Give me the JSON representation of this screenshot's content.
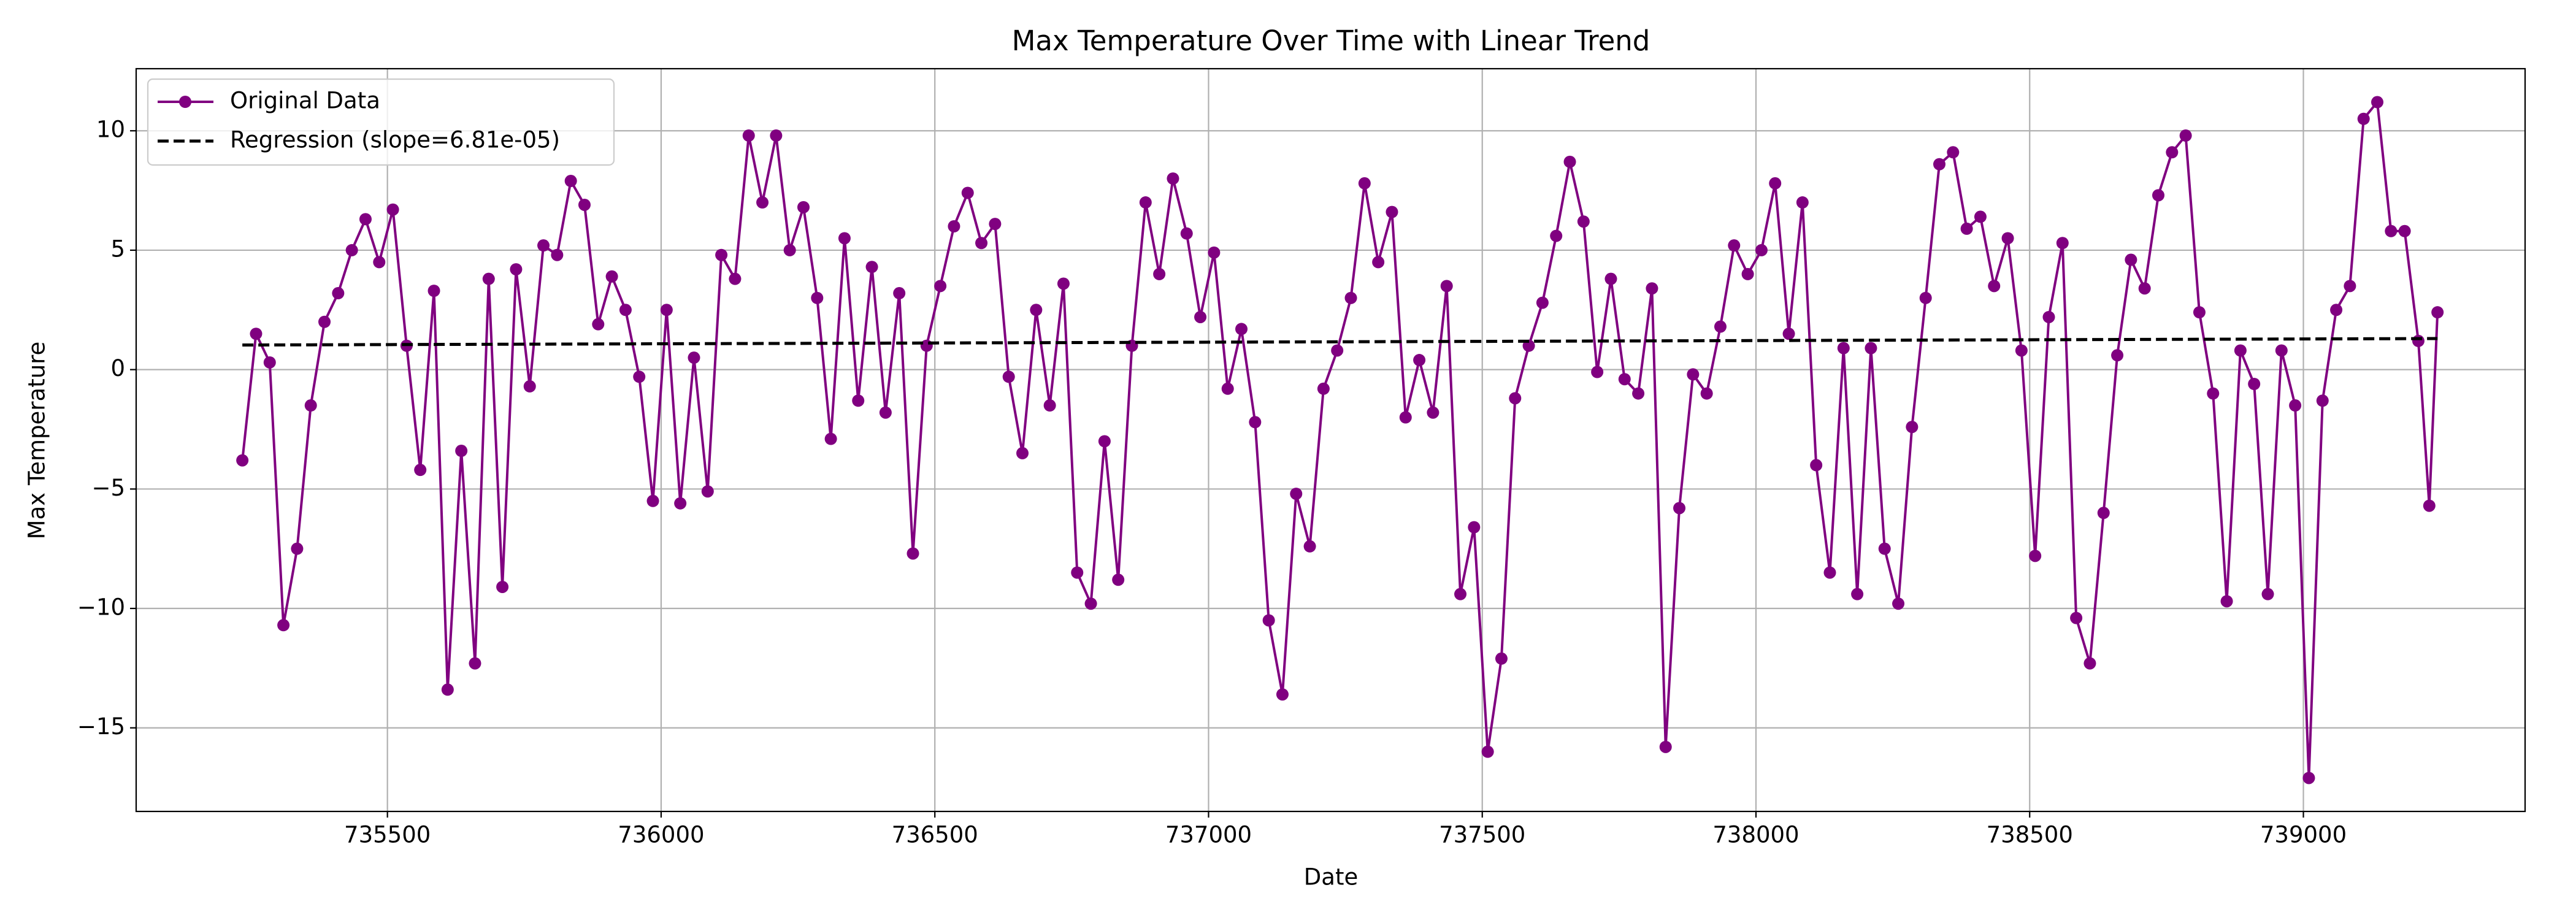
{
  "chart_data": {
    "type": "line",
    "title": "Max Temperature Over Time with Linear Trend",
    "x_label": "Date",
    "y_label": "Max Temperature",
    "xlim": [
      735041,
      739405
    ],
    "ylim": [
      -18.5,
      12.6
    ],
    "xticks": [
      735500,
      736000,
      736500,
      737000,
      737500,
      738000,
      738500,
      739000
    ],
    "yticks": [
      {
        "value": -15,
        "label": "−15"
      },
      {
        "value": -10,
        "label": "−10"
      },
      {
        "value": -5,
        "label": "−5"
      },
      0,
      5,
      10
    ],
    "grid": true,
    "legend": "upper left",
    "series": [
      {
        "name": "Original Data",
        "color": "#800080",
        "marker": "o",
        "x": [
          735235,
          735260,
          735285,
          735310,
          735335,
          735360,
          735385,
          735410,
          735435,
          735460,
          735485,
          735510,
          735535,
          735560,
          735585,
          735610,
          735635,
          735660,
          735685,
          735710,
          735735,
          735760,
          735785,
          735810,
          735835,
          735860,
          735885,
          735910,
          735935,
          735960,
          735985,
          736010,
          736035,
          736060,
          736085,
          736110,
          736135,
          736160,
          736185,
          736210,
          736235,
          736260,
          736285,
          736310,
          736335,
          736360,
          736385,
          736410,
          736435,
          736460,
          736485,
          736510,
          736535,
          736560,
          736585,
          736610,
          736635,
          736660,
          736685,
          736710,
          736735,
          736760,
          736785,
          736810,
          736835,
          736860,
          736885,
          736910,
          736935,
          736960,
          736985,
          737010,
          737035,
          737060,
          737085,
          737110,
          737135,
          737160,
          737185,
          737210,
          737235,
          737260,
          737285,
          737310,
          737335,
          737360,
          737385,
          737410,
          737435,
          737460,
          737485,
          737510,
          737535,
          737560,
          737585,
          737610,
          737635,
          737660,
          737685,
          737710,
          737735,
          737760,
          737785,
          737810,
          737835,
          737860,
          737885,
          737910,
          737935,
          737960,
          737985,
          738010,
          738035,
          738060,
          738085,
          738110,
          738135,
          738160,
          738185,
          738210,
          738235,
          738260,
          738285,
          738310,
          738335,
          738360,
          738385,
          738410,
          738435,
          738460,
          738485,
          738510,
          738535,
          738560,
          738585,
          738610,
          738635,
          738660,
          738685,
          738710,
          738735,
          738760,
          738785,
          738810,
          738835,
          738860,
          738885,
          738910,
          738935,
          738960,
          738985,
          739010,
          739035,
          739060,
          739085,
          739110,
          739135,
          739160,
          739185,
          739210,
          739230,
          739245
        ],
        "values": [
          -3.8,
          1.5,
          0.3,
          -10.7,
          -7.5,
          -1.5,
          2.0,
          3.2,
          5.0,
          6.3,
          4.5,
          6.7,
          1.0,
          -4.2,
          3.3,
          -13.4,
          -3.4,
          -12.3,
          3.8,
          -9.1,
          4.2,
          -0.7,
          5.2,
          4.8,
          7.9,
          6.9,
          1.9,
          3.9,
          2.5,
          -0.3,
          -5.5,
          2.5,
          -5.6,
          0.5,
          -5.1,
          4.8,
          3.8,
          9.8,
          7.0,
          9.8,
          5.0,
          6.8,
          3.0,
          -2.9,
          5.5,
          -1.3,
          4.3,
          -1.8,
          3.2,
          -7.7,
          1.0,
          3.5,
          6.0,
          7.4,
          5.3,
          6.1,
          -0.3,
          -3.5,
          2.5,
          -1.5,
          3.6,
          -8.5,
          -9.8,
          -3.0,
          -8.8,
          1.0,
          7.0,
          4.0,
          8.0,
          5.7,
          2.2,
          4.9,
          -0.8,
          1.7,
          -2.2,
          -10.5,
          -13.6,
          -5.2,
          -7.4,
          -0.8,
          0.8,
          3.0,
          7.8,
          4.5,
          6.6,
          -2.0,
          0.4,
          -1.8,
          3.5,
          -9.4,
          -6.6,
          -16.0,
          -12.1,
          -1.2,
          1.0,
          2.8,
          5.6,
          8.7,
          6.2,
          -0.1,
          3.8,
          -0.4,
          -1.0,
          3.4,
          -15.8,
          -5.8,
          -0.2,
          -1.0,
          1.8,
          5.2,
          4.0,
          5.0,
          7.8,
          1.5,
          7.0,
          -4.0,
          -8.5,
          0.9,
          -9.4,
          0.9,
          -7.5,
          -9.8,
          -2.4,
          3.0,
          8.6,
          9.1,
          5.9,
          6.4,
          3.5,
          5.5,
          0.8,
          -7.8,
          2.2,
          5.3,
          -10.4,
          -12.3,
          -6.0,
          0.6,
          4.6,
          3.4,
          7.3,
          9.1,
          9.8,
          2.4,
          -1.0,
          -9.7,
          0.8,
          -0.6,
          -9.4,
          0.8,
          -1.5,
          -17.1,
          -1.3,
          2.5,
          3.5,
          10.5,
          11.2,
          5.8,
          5.8,
          1.2,
          -5.7,
          2.4
        ]
      },
      {
        "name": "Regression (slope=6.81e-05)",
        "color": "#000000",
        "dashed": true,
        "x": [
          735235,
          739245
        ],
        "values": [
          1.03,
          1.3
        ]
      }
    ]
  }
}
